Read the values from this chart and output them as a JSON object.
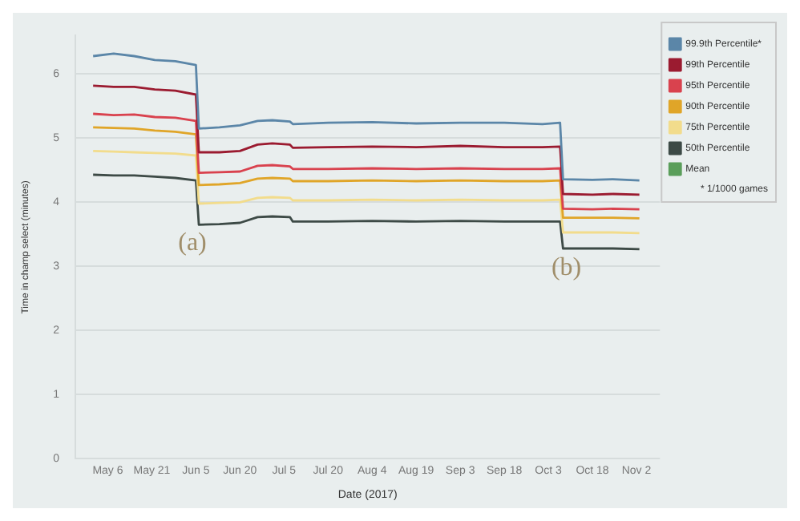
{
  "chart_data": {
    "type": "line",
    "xlabel": "Date (2017)",
    "ylabel": "Time in champ select (minutes)",
    "x": [
      "2017-05-01",
      "2017-05-08",
      "2017-05-15",
      "2017-05-22",
      "2017-05-29",
      "2017-06-05",
      "2017-06-06",
      "2017-06-13",
      "2017-06-20",
      "2017-06-26",
      "2017-07-01",
      "2017-07-07",
      "2017-07-08",
      "2017-07-20",
      "2017-08-04",
      "2017-08-19",
      "2017-09-03",
      "2017-09-18",
      "2017-10-01",
      "2017-10-07",
      "2017-10-08",
      "2017-10-18",
      "2017-10-25",
      "2017-11-03"
    ],
    "series": [
      {
        "name": "99.9th Percentile*",
        "color": "#5b86a8",
        "values": [
          6.28,
          6.32,
          6.28,
          6.22,
          6.2,
          6.14,
          5.15,
          5.17,
          5.2,
          5.27,
          5.28,
          5.26,
          5.22,
          5.24,
          5.25,
          5.23,
          5.24,
          5.24,
          5.22,
          5.24,
          4.36,
          4.35,
          4.36,
          4.34
        ]
      },
      {
        "name": "99th Percentile",
        "color": "#9b1b30",
        "values": [
          5.82,
          5.8,
          5.8,
          5.76,
          5.74,
          5.68,
          4.78,
          4.78,
          4.8,
          4.9,
          4.92,
          4.9,
          4.85,
          4.86,
          4.87,
          4.86,
          4.88,
          4.86,
          4.86,
          4.87,
          4.13,
          4.12,
          4.13,
          4.12
        ]
      },
      {
        "name": "95th Percentile",
        "color": "#d9424e",
        "values": [
          5.38,
          5.36,
          5.37,
          5.33,
          5.32,
          5.27,
          4.46,
          4.47,
          4.48,
          4.57,
          4.58,
          4.56,
          4.52,
          4.52,
          4.53,
          4.52,
          4.53,
          4.52,
          4.52,
          4.53,
          3.9,
          3.89,
          3.9,
          3.89
        ]
      },
      {
        "name": "90th Percentile",
        "color": "#e0a528",
        "values": [
          5.17,
          5.16,
          5.15,
          5.12,
          5.1,
          5.06,
          4.27,
          4.28,
          4.3,
          4.37,
          4.38,
          4.37,
          4.33,
          4.33,
          4.34,
          4.33,
          4.34,
          4.33,
          4.33,
          4.34,
          3.76,
          3.76,
          3.76,
          3.75
        ]
      },
      {
        "name": "75th Percentile",
        "color": "#f2dc8c",
        "values": [
          4.8,
          4.79,
          4.78,
          4.77,
          4.76,
          4.73,
          3.98,
          3.99,
          4.0,
          4.07,
          4.08,
          4.07,
          4.03,
          4.03,
          4.04,
          4.03,
          4.04,
          4.03,
          4.03,
          4.04,
          3.53,
          3.53,
          3.53,
          3.52
        ]
      },
      {
        "name": "50th Percentile",
        "color": "#3d4a46",
        "values": [
          4.43,
          4.42,
          4.42,
          4.4,
          4.38,
          4.34,
          3.65,
          3.66,
          3.68,
          3.77,
          3.78,
          3.77,
          3.7,
          3.7,
          3.71,
          3.7,
          3.71,
          3.7,
          3.7,
          3.7,
          3.28,
          3.28,
          3.28,
          3.27
        ]
      },
      {
        "name": "Mean",
        "color": "#5a9e5a",
        "values": [
          null,
          null,
          null,
          null,
          null,
          null,
          null,
          null,
          null,
          null,
          null,
          null,
          null,
          null,
          null,
          null,
          null,
          null,
          null,
          null,
          null,
          null,
          null,
          null
        ]
      }
    ],
    "xlim": [
      "2017-04-25",
      "2017-11-10"
    ],
    "xticks": [
      {
        "value": "2017-05-06",
        "label": "May 6"
      },
      {
        "value": "2017-05-21",
        "label": "May 21"
      },
      {
        "value": "2017-06-05",
        "label": "Jun 5"
      },
      {
        "value": "2017-06-20",
        "label": "Jun 20"
      },
      {
        "value": "2017-07-05",
        "label": "Jul 5"
      },
      {
        "value": "2017-07-20",
        "label": "Jul 20"
      },
      {
        "value": "2017-08-04",
        "label": "Aug 4"
      },
      {
        "value": "2017-08-19",
        "label": "Aug 19"
      },
      {
        "value": "2017-09-03",
        "label": "Sep 3"
      },
      {
        "value": "2017-09-18",
        "label": "Sep 18"
      },
      {
        "value": "2017-10-03",
        "label": "Oct 3"
      },
      {
        "value": "2017-10-18",
        "label": "Oct 18"
      },
      {
        "value": "2017-11-02",
        "label": "Nov 2"
      }
    ],
    "ylim": [
      0,
      6.6
    ],
    "yticks": [
      0,
      1,
      2,
      3,
      4,
      5,
      6
    ],
    "grid": "y",
    "legend": "top right",
    "marker": "none",
    "line_style": "solid",
    "annotations": [
      "(a)",
      "(b)",
      "* 1/1000 games"
    ]
  }
}
